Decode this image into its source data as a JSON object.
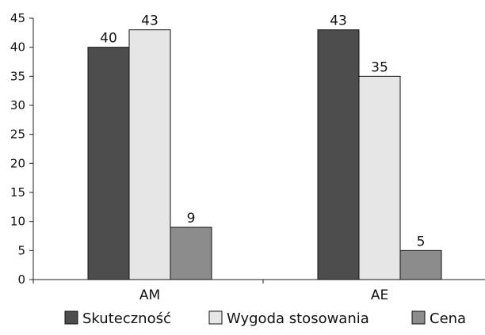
{
  "chart_data": {
    "type": "bar",
    "categories": [
      "AM",
      "AE"
    ],
    "series": [
      {
        "name": "Skuteczność",
        "values": [
          40,
          43
        ],
        "color": "#4d4d4d"
      },
      {
        "name": "Wygoda stosowania",
        "values": [
          43,
          35
        ],
        "color": "#e6e6e6"
      },
      {
        "name": "Cena",
        "values": [
          9,
          5
        ],
        "color": "#8c8c8c"
      }
    ],
    "ylim": [
      0,
      45
    ],
    "yticks": [
      0,
      5,
      10,
      15,
      20,
      25,
      30,
      35,
      40,
      45
    ],
    "data_labels": true,
    "grid": false,
    "legend_position": "bottom"
  }
}
